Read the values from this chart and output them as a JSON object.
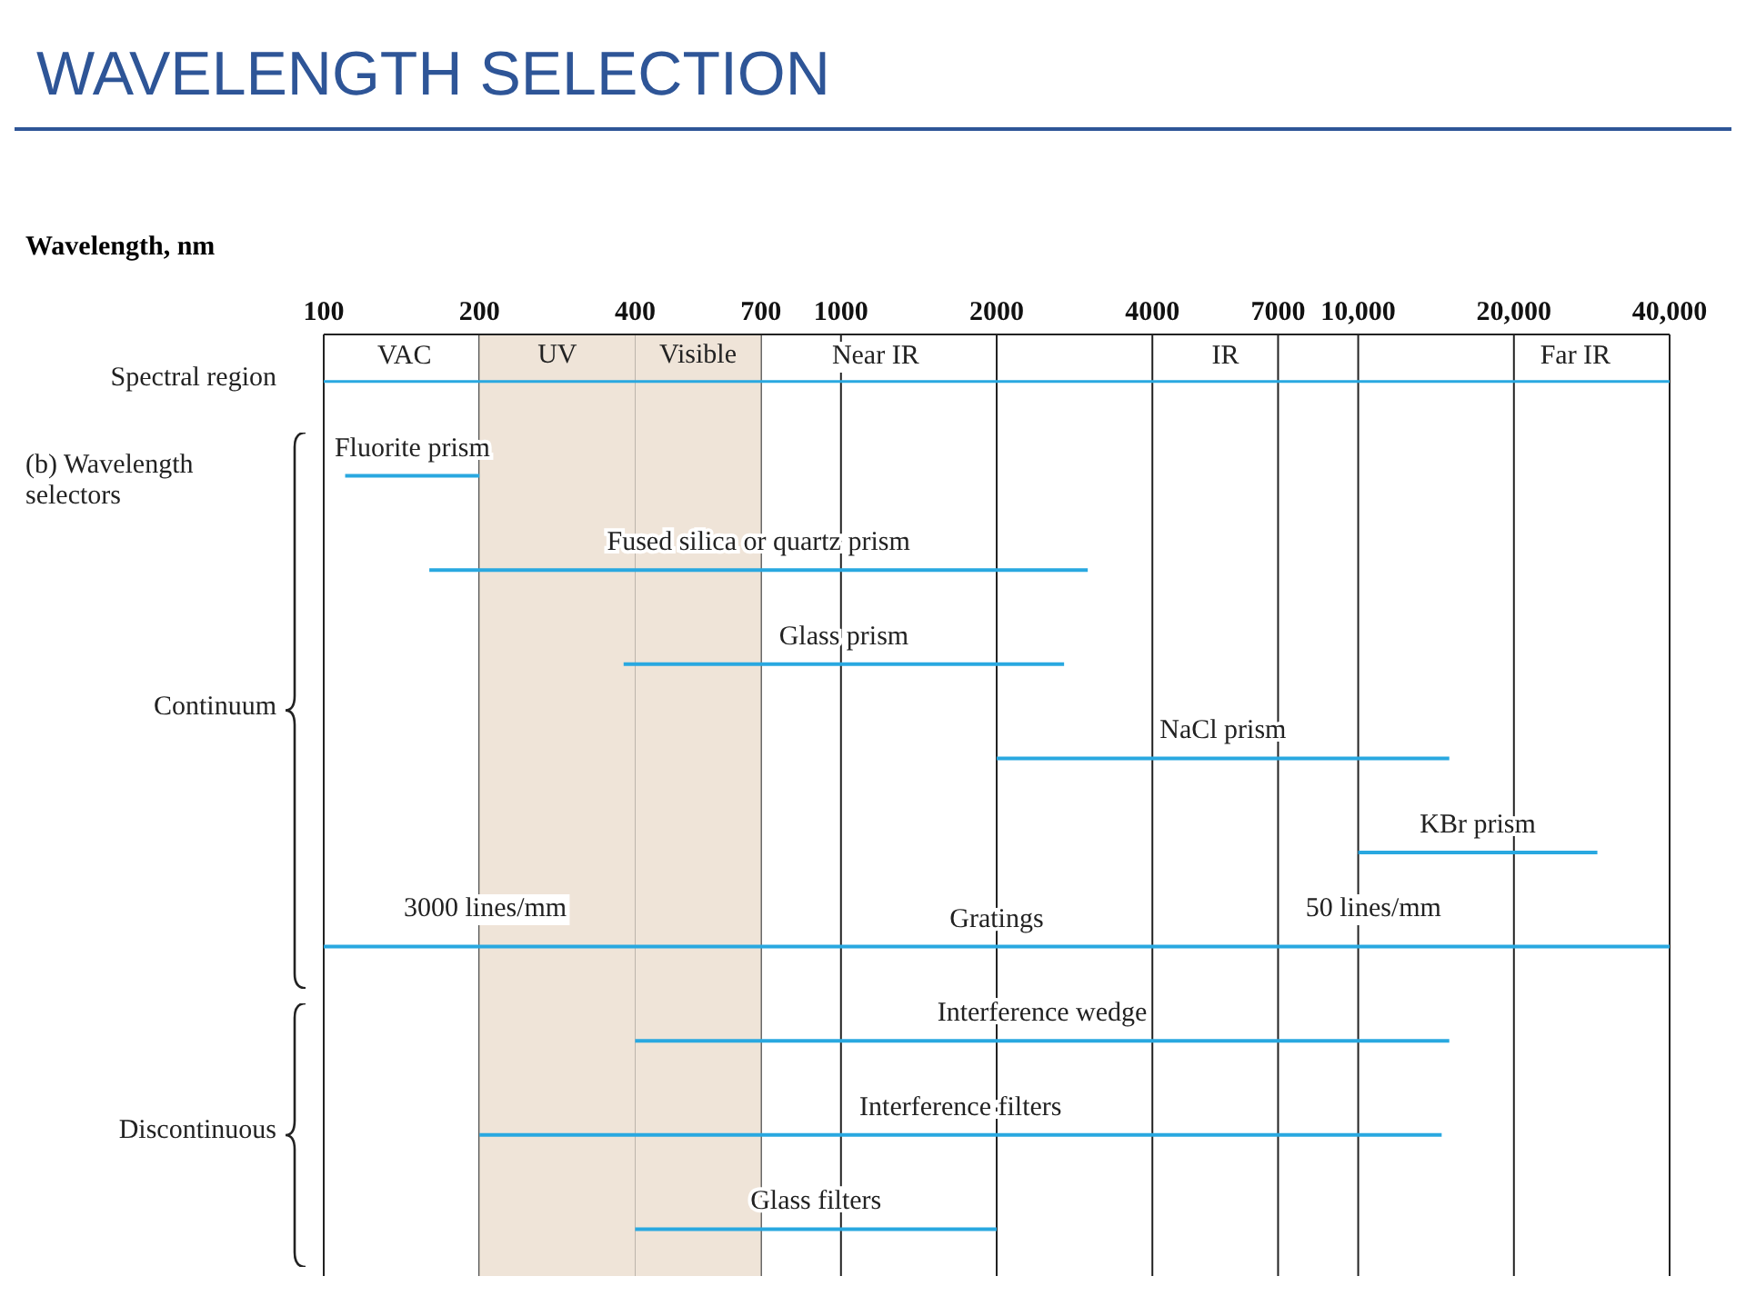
{
  "chart_data": {
    "type": "bar",
    "orientation": "horizontal",
    "title": "WAVELENGTH SELECTION",
    "xlabel": "Wavelength, nm",
    "categories": [
      "Fluorite prism",
      "Fused silica or quartz prism",
      "Glass prism",
      "NaCl prism",
      "KBr prism",
      "Gratings",
      "Interference wedge",
      "Interference filters",
      "Glass filters"
    ],
    "base": [
      110,
      160,
      380,
      2000,
      10000,
      100,
      400,
      200,
      400
    ],
    "values": [
      90,
      2840,
      2320,
      13000,
      19000,
      39900,
      14600,
      14300,
      1600
    ],
    "color": "#29a8e0",
    "log": "x",
    "xlim": [
      100,
      40000
    ],
    "xticks": [
      100,
      200,
      400,
      700,
      1000,
      2000,
      4000,
      7000,
      {
        "value": 10000,
        "label": "10,000"
      },
      {
        "value": 20000,
        "label": "20,000"
      },
      {
        "value": 40000,
        "label": "40,000"
      }
    ],
    "grid": "x",
    "bands": [
      {
        "axis": "x",
        "from": 200,
        "to": 400,
        "label": "UV",
        "color": "#efe4d8"
      },
      {
        "axis": "x",
        "from": 400,
        "to": 700,
        "label": "Visible",
        "color": "#efe4d8"
      }
    ],
    "annotations": [
      "Spectral region",
      "(b) Wavelength selectors",
      "Continuum",
      "Discontinuous",
      "VAC",
      "Near IR",
      "IR",
      "Far IR",
      "3000 lines/mm",
      "50 lines/mm"
    ]
  }
}
